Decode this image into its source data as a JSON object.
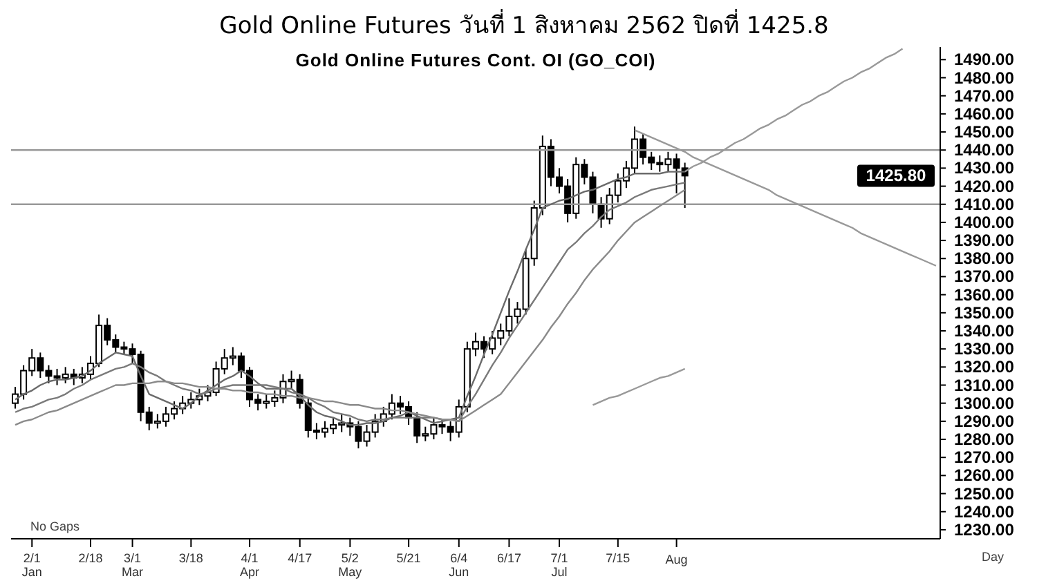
{
  "chart_data": {
    "type": "candlestick",
    "title": "Gold Online Futures วันที่ 1 สิงหาคม 2562 ปิดที่ 1425.8",
    "subtitle": "Gold Online Futures Cont. OI (GO_COI)",
    "color": "#000000",
    "categories": [
      null,
      null,
      "2/1\nJan",
      null,
      null,
      null,
      null,
      null,
      null,
      "2/18",
      null,
      null,
      null,
      null,
      "3/1\nMar",
      null,
      null,
      null,
      null,
      null,
      null,
      "3/18",
      null,
      null,
      null,
      null,
      null,
      null,
      "4/1\nApr",
      null,
      null,
      null,
      null,
      null,
      "4/17",
      null,
      null,
      null,
      null,
      null,
      "5/2\nMay",
      null,
      null,
      null,
      null,
      null,
      null,
      "5/21",
      null,
      null,
      null,
      null,
      null,
      "6/4\nJun",
      null,
      null,
      null,
      null,
      null,
      "6/17",
      null,
      null,
      null,
      null,
      null,
      "7/1\nJul",
      null,
      null,
      null,
      null,
      null,
      null,
      "7/15",
      null,
      null,
      null,
      null,
      null,
      null,
      "\nAug",
      null,
      null,
      null,
      null,
      null,
      null,
      null,
      null,
      null,
      null,
      null,
      null,
      null,
      null,
      null,
      null,
      null,
      null,
      null,
      null,
      null,
      null,
      null,
      null,
      null,
      null,
      null,
      null,
      null,
      null,
      null
    ],
    "ohlc": [
      [
        1300,
        1309,
        1297,
        1305
      ],
      [
        1305,
        1321,
        1302,
        1318
      ],
      [
        1318,
        1330,
        1315,
        1325
      ],
      [
        1325,
        1328,
        1314,
        1318
      ],
      [
        1318,
        1321,
        1311,
        1315
      ],
      [
        1315,
        1319,
        1310,
        1314
      ],
      [
        1314,
        1320,
        1311,
        1316
      ],
      [
        1316,
        1319,
        1310,
        1314
      ],
      [
        1314,
        1320,
        1311,
        1316
      ],
      [
        1316,
        1326,
        1313,
        1322
      ],
      [
        1322,
        1349,
        1320,
        1343
      ],
      [
        1343,
        1347,
        1332,
        1335
      ],
      [
        1335,
        1338,
        1328,
        1331
      ],
      [
        1331,
        1334,
        1327,
        1330
      ],
      [
        1330,
        1333,
        1322,
        1327
      ],
      [
        1327,
        1329,
        1290,
        1295
      ],
      [
        1295,
        1298,
        1285,
        1289
      ],
      [
        1289,
        1294,
        1286,
        1290
      ],
      [
        1290,
        1298,
        1287,
        1294
      ],
      [
        1294,
        1301,
        1291,
        1297
      ],
      [
        1297,
        1304,
        1294,
        1300
      ],
      [
        1300,
        1306,
        1297,
        1302
      ],
      [
        1302,
        1308,
        1299,
        1304
      ],
      [
        1304,
        1310,
        1301,
        1306
      ],
      [
        1306,
        1323,
        1304,
        1319
      ],
      [
        1319,
        1330,
        1316,
        1325
      ],
      [
        1325,
        1331,
        1321,
        1326
      ],
      [
        1326,
        1328,
        1314,
        1318
      ],
      [
        1318,
        1320,
        1298,
        1302
      ],
      [
        1302,
        1305,
        1296,
        1300
      ],
      [
        1300,
        1305,
        1297,
        1301
      ],
      [
        1301,
        1307,
        1298,
        1303
      ],
      [
        1303,
        1316,
        1300,
        1312
      ],
      [
        1312,
        1318,
        1308,
        1313
      ],
      [
        1313,
        1316,
        1297,
        1300
      ],
      [
        1300,
        1303,
        1281,
        1285
      ],
      [
        1285,
        1289,
        1280,
        1284
      ],
      [
        1284,
        1290,
        1281,
        1286
      ],
      [
        1286,
        1292,
        1283,
        1288
      ],
      [
        1288,
        1294,
        1284,
        1289
      ],
      [
        1289,
        1292,
        1282,
        1287
      ],
      [
        1287,
        1290,
        1275,
        1279
      ],
      [
        1279,
        1288,
        1276,
        1284
      ],
      [
        1284,
        1294,
        1281,
        1290
      ],
      [
        1290,
        1298,
        1287,
        1294
      ],
      [
        1294,
        1305,
        1291,
        1300
      ],
      [
        1300,
        1304,
        1294,
        1298
      ],
      [
        1298,
        1301,
        1288,
        1292
      ],
      [
        1292,
        1295,
        1278,
        1282
      ],
      [
        1282,
        1287,
        1279,
        1283
      ],
      [
        1283,
        1292,
        1280,
        1288
      ],
      [
        1288,
        1291,
        1283,
        1287
      ],
      [
        1287,
        1290,
        1279,
        1284
      ],
      [
        1284,
        1302,
        1281,
        1298
      ],
      [
        1298,
        1334,
        1295,
        1330
      ],
      [
        1330,
        1339,
        1326,
        1334
      ],
      [
        1334,
        1337,
        1325,
        1330
      ],
      [
        1330,
        1340,
        1327,
        1336
      ],
      [
        1336,
        1344,
        1332,
        1340
      ],
      [
        1340,
        1358,
        1337,
        1348
      ],
      [
        1348,
        1356,
        1344,
        1352
      ],
      [
        1352,
        1385,
        1349,
        1380
      ],
      [
        1380,
        1412,
        1376,
        1408
      ],
      [
        1408,
        1448,
        1404,
        1442
      ],
      [
        1442,
        1446,
        1420,
        1425
      ],
      [
        1425,
        1430,
        1416,
        1420
      ],
      [
        1420,
        1424,
        1400,
        1405
      ],
      [
        1405,
        1436,
        1402,
        1432
      ],
      [
        1432,
        1435,
        1421,
        1425
      ],
      [
        1425,
        1428,
        1405,
        1410
      ],
      [
        1410,
        1414,
        1397,
        1402
      ],
      [
        1402,
        1419,
        1399,
        1415
      ],
      [
        1415,
        1427,
        1411,
        1423
      ],
      [
        1423,
        1434,
        1419,
        1430
      ],
      [
        1430,
        1453,
        1427,
        1446
      ],
      [
        1446,
        1449,
        1432,
        1436
      ],
      [
        1436,
        1439,
        1429,
        1433
      ],
      [
        1433,
        1437,
        1428,
        1432
      ],
      [
        1432,
        1439,
        1428,
        1435
      ],
      [
        1435,
        1438,
        1416,
        1430
      ],
      [
        1430,
        1433,
        1408,
        1425.8
      ],
      null,
      null,
      null,
      null,
      null,
      null,
      null,
      null,
      null,
      null,
      null,
      null,
      null,
      null,
      null,
      null,
      null,
      null,
      null,
      null,
      null,
      null,
      null,
      null,
      null,
      null,
      null,
      null,
      null,
      null
    ],
    "series": [
      {
        "type": "line",
        "color": "#6a6a6a",
        "values": [
          1302,
          1305,
          1307,
          1310,
          1312,
          1313,
          1313,
          1314,
          1315,
          1318,
          1322,
          1325,
          1328,
          1327,
          1326,
          1315,
          1305,
          1303,
          1301,
          1299,
          1297,
          1300,
          1304,
          1307,
          1310,
          1313,
          1315,
          1318,
          1315,
          1311,
          1308,
          1308,
          1308,
          1308,
          1304,
          1299,
          1295,
          1293,
          1292,
          1290,
          1288,
          1288,
          1289,
          1289,
          1290,
          1292,
          1293,
          1295,
          1293,
          1291,
          1289,
          1290,
          1291,
          1292,
          1304,
          1315,
          1327,
          1338,
          1350,
          1362,
          1373,
          1385,
          1396,
          1408,
          1410,
          1412,
          1413,
          1415,
          1417,
          1418,
          1420,
          1422,
          1424,
          1425,
          1427,
          1427,
          1427,
          1427,
          1428,
          1428,
          1428,
          null,
          null,
          null,
          null,
          null,
          null,
          null,
          null,
          null,
          null,
          null,
          null,
          null,
          null,
          null,
          null,
          null,
          null,
          null,
          null,
          null,
          null,
          null,
          null,
          null,
          null,
          null,
          null,
          null,
          null
        ]
      },
      {
        "type": "line",
        "color": "#7a7a7a",
        "values": [
          1295,
          1297,
          1298,
          1300,
          1302,
          1303,
          1305,
          1308,
          1310,
          1313,
          1315,
          1317,
          1319,
          1320,
          1322,
          1320,
          1317,
          1315,
          1312,
          1310,
          1308,
          1307,
          1305,
          1306,
          1308,
          1309,
          1310,
          1310,
          1310,
          1310,
          1310,
          1309,
          1308,
          1306,
          1305,
          1303,
          1300,
          1298,
          1295,
          1294,
          1293,
          1291,
          1290,
          1291,
          1291,
          1292,
          1292,
          1292,
          1292,
          1292,
          1292,
          1291,
          1291,
          1290,
          1298,
          1305,
          1313,
          1321,
          1328,
          1336,
          1343,
          1350,
          1357,
          1364,
          1371,
          1378,
          1385,
          1389,
          1394,
          1398,
          1403,
          1407,
          1409,
          1411,
          1414,
          1416,
          1418,
          1419,
          1420,
          1421,
          1422,
          null,
          null,
          null,
          null,
          null,
          null,
          null,
          null,
          null,
          null,
          null,
          null,
          null,
          null,
          null,
          null,
          null,
          null,
          null,
          null,
          null,
          null,
          null,
          null,
          null,
          null,
          null,
          null,
          null,
          null
        ]
      },
      {
        "type": "line",
        "color": "#8a8a8a",
        "values": [
          1288,
          1290,
          1291,
          1293,
          1295,
          1296,
          1298,
          1300,
          1302,
          1304,
          1306,
          1308,
          1310,
          1310,
          1311,
          1311,
          1311,
          1312,
          1312,
          1311,
          1311,
          1310,
          1309,
          1309,
          1308,
          1308,
          1307,
          1307,
          1306,
          1306,
          1305,
          1305,
          1304,
          1304,
          1303,
          1303,
          1302,
          1301,
          1301,
          1300,
          1299,
          1299,
          1298,
          1297,
          1297,
          1296,
          1296,
          1295,
          1294,
          1293,
          1292,
          1291,
          1291,
          1290,
          1293,
          1296,
          1299,
          1302,
          1305,
          1311,
          1317,
          1323,
          1329,
          1335,
          1342,
          1348,
          1355,
          1361,
          1368,
          1374,
          1379,
          1384,
          1390,
          1395,
          1400,
          1403,
          1406,
          1409,
          1412,
          1415,
          1418,
          null,
          null,
          null,
          null,
          null,
          null,
          null,
          null,
          null,
          null,
          null,
          null,
          null,
          null,
          null,
          null,
          null,
          null,
          null,
          null,
          null,
          null,
          null,
          null,
          null,
          null,
          null,
          null,
          null,
          null
        ]
      },
      {
        "type": "line",
        "color": "#999999",
        "values": [
          null,
          null,
          null,
          null,
          null,
          null,
          null,
          null,
          null,
          null,
          null,
          null,
          null,
          null,
          null,
          null,
          null,
          null,
          null,
          null,
          null,
          null,
          null,
          null,
          null,
          null,
          null,
          null,
          null,
          null,
          null,
          null,
          null,
          null,
          null,
          null,
          null,
          null,
          null,
          null,
          null,
          null,
          null,
          null,
          null,
          null,
          null,
          null,
          null,
          null,
          null,
          null,
          null,
          null,
          null,
          null,
          null,
          null,
          null,
          null,
          null,
          null,
          null,
          null,
          null,
          null,
          null,
          null,
          null,
          null,
          null,
          null,
          null,
          null,
          null,
          null,
          null,
          null,
          null,
          null,
          1428,
          1431,
          1433,
          1436,
          1438,
          1441,
          1444,
          1446,
          1449,
          1452,
          1454,
          1457,
          1459,
          1462,
          1465,
          1467,
          1470,
          1472,
          1475,
          1478,
          1480,
          1483,
          1485,
          1488,
          1491,
          1493,
          1496,
          null,
          null,
          null,
          null
        ]
      },
      {
        "type": "line",
        "color": "#999999",
        "values": [
          null,
          null,
          null,
          null,
          null,
          null,
          null,
          null,
          null,
          null,
          null,
          null,
          null,
          null,
          null,
          null,
          null,
          null,
          null,
          null,
          null,
          null,
          null,
          null,
          null,
          null,
          null,
          null,
          null,
          null,
          null,
          null,
          null,
          null,
          null,
          null,
          null,
          null,
          null,
          null,
          null,
          null,
          null,
          null,
          null,
          null,
          null,
          null,
          null,
          null,
          null,
          null,
          null,
          null,
          null,
          null,
          null,
          null,
          null,
          null,
          null,
          null,
          null,
          null,
          null,
          null,
          null,
          null,
          null,
          null,
          null,
          null,
          null,
          null,
          1451,
          1449,
          1447,
          1445,
          1443,
          1441,
          1439,
          1436,
          1434,
          1432,
          1430,
          1428,
          1426,
          1424,
          1422,
          1420,
          1418,
          1415,
          1413,
          1411,
          1409,
          1407,
          1405,
          1403,
          1401,
          1399,
          1397,
          1394,
          1392,
          1390,
          1388,
          1386,
          1384,
          1382,
          1380,
          1378,
          1376
        ]
      },
      {
        "type": "line",
        "color": "#999999",
        "values": [
          null,
          null,
          null,
          null,
          null,
          null,
          null,
          null,
          null,
          null,
          null,
          null,
          null,
          null,
          null,
          null,
          null,
          null,
          null,
          null,
          null,
          null,
          null,
          null,
          null,
          null,
          null,
          null,
          null,
          null,
          null,
          null,
          null,
          null,
          null,
          null,
          null,
          null,
          null,
          null,
          null,
          null,
          null,
          null,
          null,
          null,
          null,
          null,
          null,
          null,
          null,
          null,
          null,
          null,
          null,
          null,
          null,
          null,
          null,
          null,
          null,
          null,
          null,
          null,
          null,
          null,
          null,
          null,
          null,
          1299,
          1301,
          1303,
          1304,
          1306,
          1308,
          1310,
          1312,
          1314,
          1315,
          1317,
          1319,
          null,
          null,
          null,
          null,
          null,
          null,
          null,
          null,
          null,
          null,
          null,
          null,
          null,
          null,
          null,
          null,
          null,
          null,
          null,
          null,
          null,
          null,
          null,
          null,
          null,
          null,
          null,
          null,
          null,
          null
        ]
      }
    ],
    "ref_lines": [
      {
        "axis": "y",
        "value": 1440,
        "color": "#999999"
      },
      {
        "axis": "y",
        "value": 1410,
        "color": "#999999"
      }
    ],
    "annotations": [
      "No Gaps",
      "Day",
      "1425.80"
    ],
    "ylim": [
      1225,
      1497
    ],
    "yticks": [
      {
        "value": 1230,
        "label": "1230.00"
      },
      {
        "value": 1240,
        "label": "1240.00"
      },
      {
        "value": 1250,
        "label": "1250.00"
      },
      {
        "value": 1260,
        "label": "1260.00"
      },
      {
        "value": 1270,
        "label": "1270.00"
      },
      {
        "value": 1280,
        "label": "1280.00"
      },
      {
        "value": 1290,
        "label": "1290.00"
      },
      {
        "value": 1300,
        "label": "1300.00"
      },
      {
        "value": 1310,
        "label": "1310.00"
      },
      {
        "value": 1320,
        "label": "1320.00"
      },
      {
        "value": 1330,
        "label": "1330.00"
      },
      {
        "value": 1340,
        "label": "1340.00"
      },
      {
        "value": 1350,
        "label": "1350.00"
      },
      {
        "value": 1360,
        "label": "1360.00"
      },
      {
        "value": 1370,
        "label": "1370.00"
      },
      {
        "value": 1380,
        "label": "1380.00"
      },
      {
        "value": 1390,
        "label": "1390.00"
      },
      {
        "value": 1400,
        "label": "1400.00"
      },
      {
        "value": 1410,
        "label": "1410.00"
      },
      {
        "value": 1420,
        "label": "1420.00"
      },
      {
        "value": 1430,
        "label": "1430.00"
      },
      {
        "value": 1440,
        "label": "1440.00"
      },
      {
        "value": 1450,
        "label": "1450.00"
      },
      {
        "value": 1460,
        "label": "1460.00"
      },
      {
        "value": 1470,
        "label": "1470.00"
      },
      {
        "value": 1480,
        "label": "1480.00"
      },
      {
        "value": 1490,
        "label": "1490.00"
      }
    ],
    "grid": false,
    "legend": false
  }
}
